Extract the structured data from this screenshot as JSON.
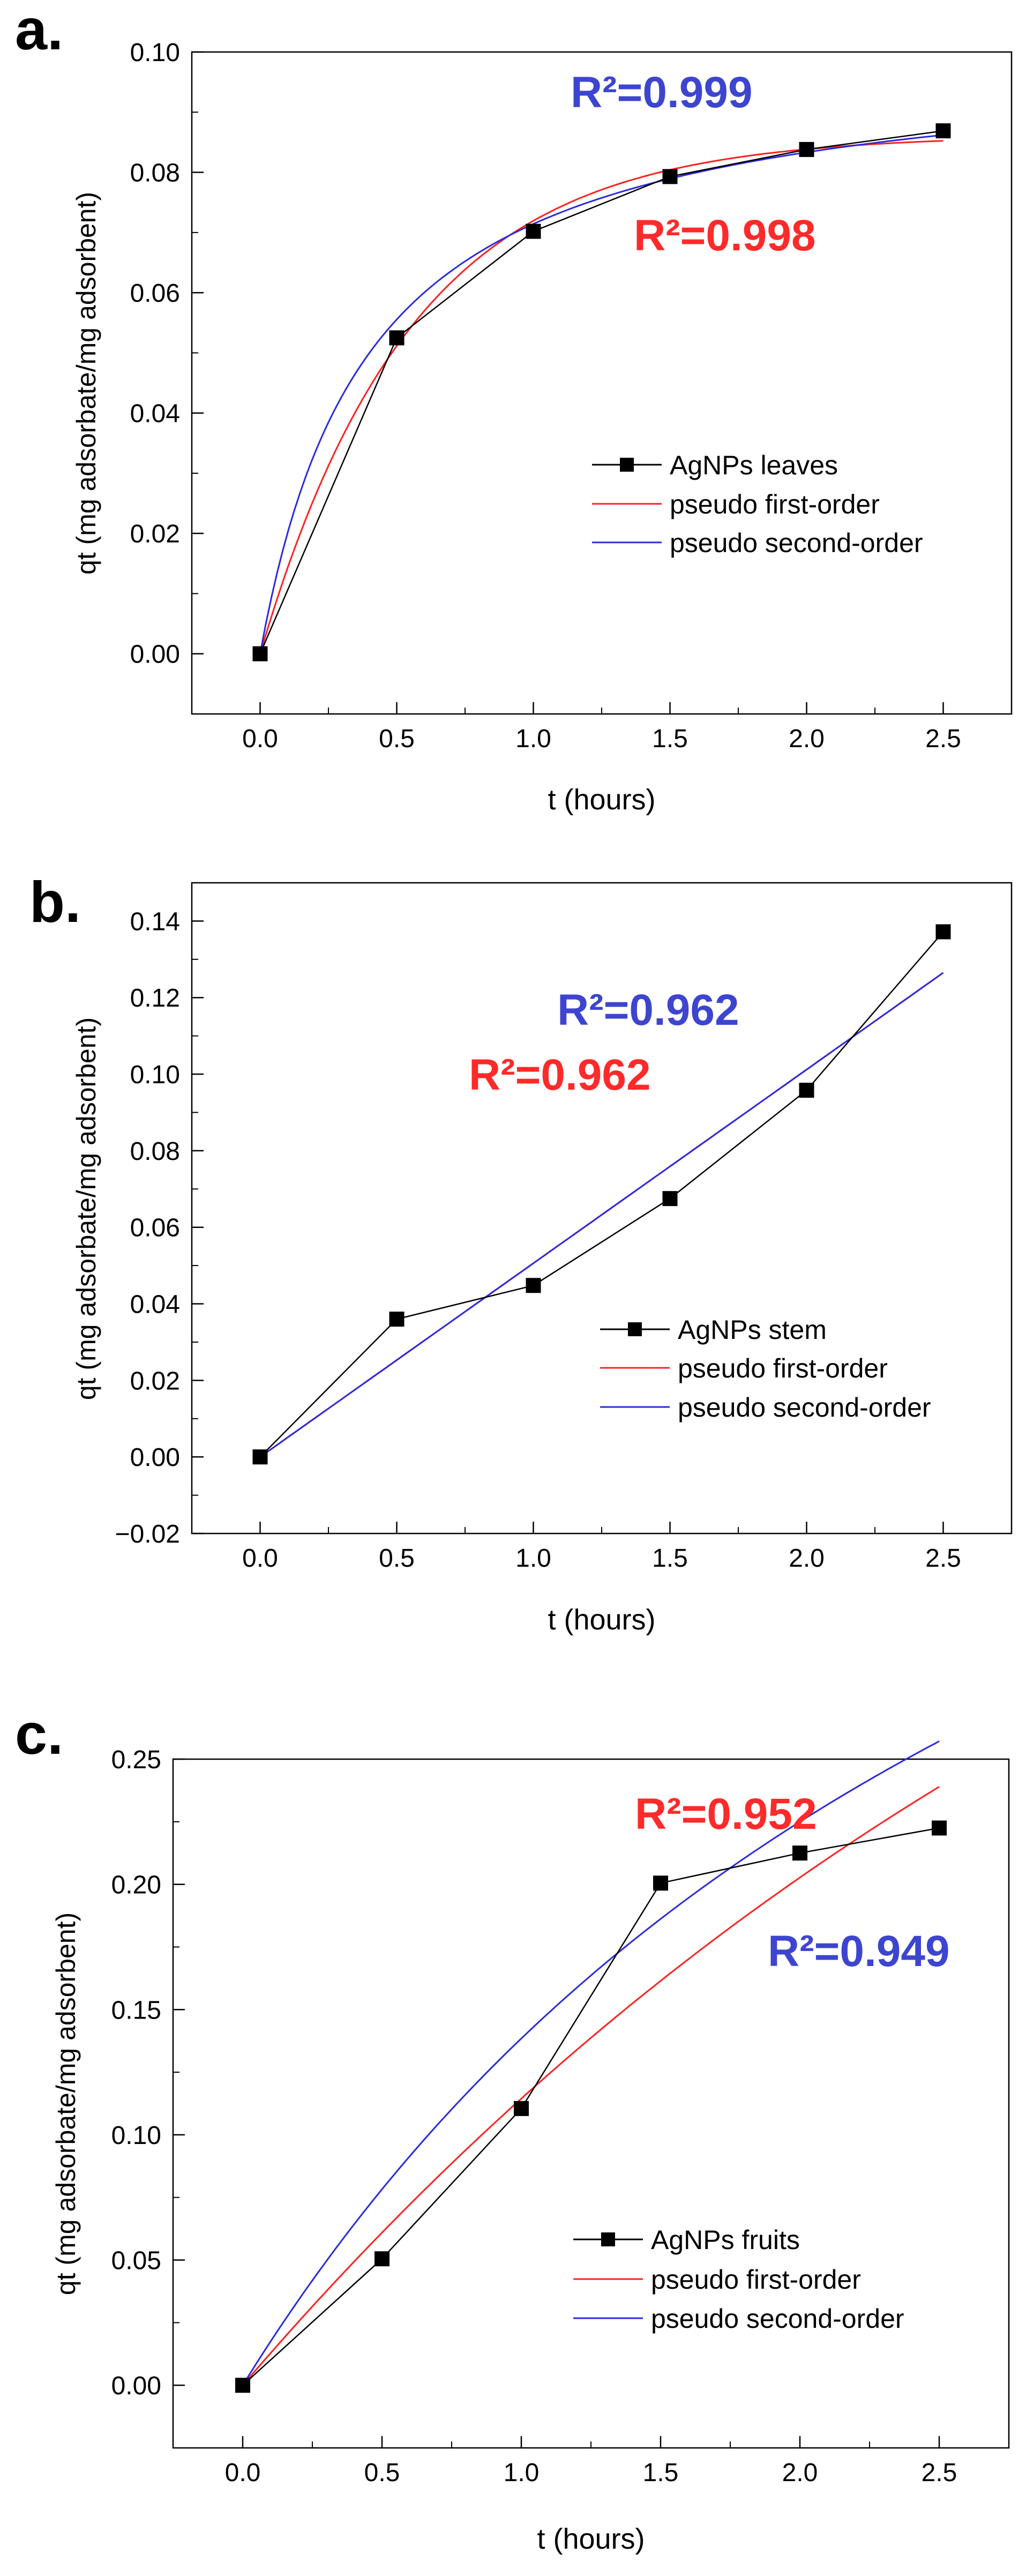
{
  "colors": {
    "data": "#000000",
    "first_order": "#ff2020",
    "second_order": "#2a2ae0",
    "r2_first": "#ff2a2a",
    "r2_second": "#3d45d0"
  },
  "chart_data": [
    {
      "type": "line",
      "panel_label": "a.",
      "xlabel": "t (hours)",
      "ylabel": "qt (mg adsorbate/mg adsorbent)",
      "xlim": [
        -0.25,
        2.75
      ],
      "ylim": [
        -0.01,
        0.1
      ],
      "xticks": [
        0.0,
        0.5,
        1.0,
        1.5,
        2.0,
        2.5
      ],
      "xtick_labels": [
        "0.0",
        "0.5",
        "1.0",
        "1.5",
        "2.0",
        "2.5"
      ],
      "yticks": [
        0.0,
        0.02,
        0.04,
        0.06,
        0.08,
        0.1
      ],
      "ytick_labels": [
        "0.00",
        "0.02",
        "0.04",
        "0.06",
        "0.08",
        "0.10"
      ],
      "series": [
        {
          "name": "AgNPs leaves",
          "kind": "data",
          "x": [
            0,
            0.5,
            1.0,
            1.5,
            2.0,
            2.5
          ],
          "y": [
            0.0,
            0.0525,
            0.0702,
            0.0793,
            0.0838,
            0.0869
          ]
        },
        {
          "name": "pseudo first-order",
          "kind": "first",
          "model": "pfo",
          "qe": 0.0862,
          "k": 1.8
        },
        {
          "name": "pseudo second-order",
          "kind": "second",
          "model": "pso",
          "qe": 0.1,
          "k": 25
        }
      ],
      "annotations": [
        {
          "text": "R²=0.999",
          "series": "second"
        },
        {
          "text": "R²=0.998",
          "series": "first"
        }
      ]
    },
    {
      "type": "line",
      "panel_label": "b.",
      "xlabel": "t (hours)",
      "ylabel": "qt (mg adsorbate/mg adsorbent)",
      "xlim": [
        -0.25,
        2.75
      ],
      "ylim": [
        -0.02,
        0.15
      ],
      "xticks": [
        0.0,
        0.5,
        1.0,
        1.5,
        2.0,
        2.5
      ],
      "xtick_labels": [
        "0.0",
        "0.5",
        "1.0",
        "1.5",
        "2.0",
        "2.5"
      ],
      "yticks": [
        -0.02,
        0.0,
        0.02,
        0.04,
        0.06,
        0.08,
        0.1,
        0.12,
        0.14
      ],
      "ytick_labels": [
        "−0.02",
        "0.00",
        "0.02",
        "0.04",
        "0.06",
        "0.08",
        "0.10",
        "0.12",
        "0.14"
      ],
      "series": [
        {
          "name": "AgNPs stem",
          "kind": "data",
          "x": [
            0,
            0.5,
            1.0,
            1.5,
            2.0,
            2.5
          ],
          "y": [
            0.0,
            0.036,
            0.0448,
            0.0675,
            0.0958,
            0.1372
          ]
        },
        {
          "name": "pseudo first-order",
          "kind": "first",
          "model": "linear",
          "slope": 0.0506
        },
        {
          "name": "pseudo second-order",
          "kind": "second",
          "model": "linear",
          "slope": 0.0506
        }
      ],
      "annotations": [
        {
          "text": "R²=0.962",
          "series": "second"
        },
        {
          "text": "R²=0.962",
          "series": "first"
        }
      ]
    },
    {
      "type": "line",
      "panel_label": "c.",
      "xlabel": "t (hours)",
      "ylabel": "qt (mg adsorbate/mg adsorbent)",
      "xlim": [
        -0.25,
        2.75
      ],
      "ylim": [
        -0.025,
        0.25
      ],
      "xticks": [
        0.0,
        0.5,
        1.0,
        1.5,
        2.0,
        2.5
      ],
      "xtick_labels": [
        "0.0",
        "0.5",
        "1.0",
        "1.5",
        "2.0",
        "2.5"
      ],
      "yticks": [
        0.0,
        0.05,
        0.1,
        0.15,
        0.2,
        0.25
      ],
      "ytick_labels": [
        "0.00",
        "0.05",
        "0.10",
        "0.15",
        "0.20",
        "0.25"
      ],
      "series": [
        {
          "name": "AgNPs fruits",
          "kind": "data",
          "x": [
            0,
            0.5,
            1.0,
            1.5,
            2.0,
            2.5
          ],
          "y": [
            0.0,
            0.0505,
            0.1105,
            0.2005,
            0.2125,
            0.2225
          ]
        },
        {
          "name": "pseudo first-order",
          "kind": "first",
          "model": "pfo",
          "qe": 0.5,
          "k": 0.26
        },
        {
          "name": "pseudo second-order",
          "kind": "second",
          "model": "pso",
          "qe": 0.6,
          "k": 0.5
        }
      ],
      "annotations": [
        {
          "text": "R²=0.952",
          "series": "first"
        },
        {
          "text": "R²=0.949",
          "series": "second"
        }
      ]
    }
  ]
}
